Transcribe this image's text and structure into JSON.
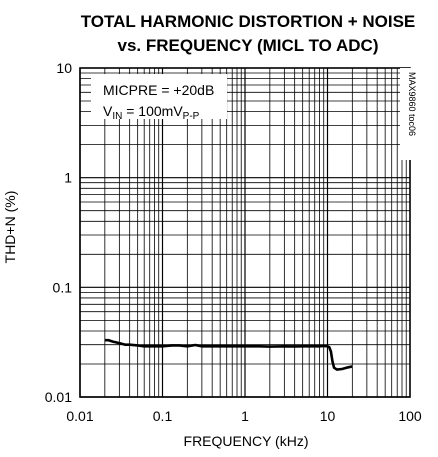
{
  "chart_data": {
    "type": "line",
    "title_line1": "TOTAL HARMONIC DISTORTION + NOISE",
    "title_line2": "vs. FREQUENCY (MICL TO ADC)",
    "xlabel": "FREQUENCY (kHz)",
    "ylabel": "THD+N (%)",
    "x_scale": "log",
    "y_scale": "log",
    "xlim": [
      0.01,
      100
    ],
    "ylim": [
      0.01,
      10
    ],
    "x_ticks": [
      "0.01",
      "0.1",
      "1",
      "10",
      "100"
    ],
    "y_ticks": [
      "10",
      "1",
      "0.1",
      "0.01"
    ],
    "grid": true,
    "annotation": {
      "line1": "MICPRE = +20dB",
      "line2_main": "V",
      "line2_sub1": "IN",
      "line2_mid": " = 100mV",
      "line2_sub2": "P-P"
    },
    "side_label": "MAX9860 toc06",
    "series": [
      {
        "color": "#000000",
        "x": [
          0.02,
          0.022,
          0.025,
          0.03,
          0.035,
          0.04,
          0.05,
          0.06,
          0.08,
          0.1,
          0.13,
          0.16,
          0.2,
          0.25,
          0.3,
          0.4,
          0.5,
          0.7,
          1,
          1.5,
          2,
          3,
          4,
          5,
          6,
          7,
          8,
          9,
          10,
          10.5,
          11,
          11.5,
          12,
          13,
          15,
          17,
          20
        ],
        "y": [
          0.033,
          0.033,
          0.032,
          0.031,
          0.03,
          0.03,
          0.0295,
          0.029,
          0.029,
          0.029,
          0.0295,
          0.0295,
          0.029,
          0.0298,
          0.029,
          0.029,
          0.029,
          0.029,
          0.029,
          0.029,
          0.0288,
          0.029,
          0.0289,
          0.029,
          0.029,
          0.029,
          0.029,
          0.0292,
          0.029,
          0.0285,
          0.026,
          0.021,
          0.0185,
          0.0178,
          0.018,
          0.0185,
          0.019
        ]
      }
    ]
  }
}
